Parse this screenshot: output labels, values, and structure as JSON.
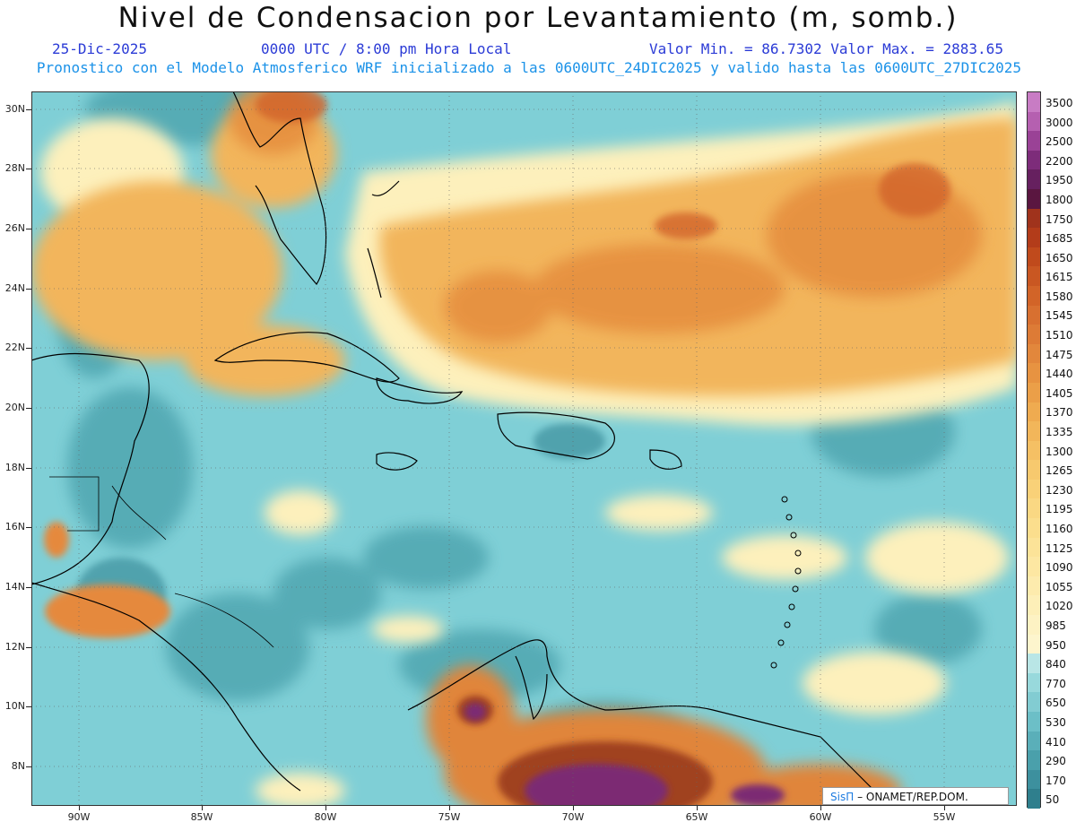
{
  "header": {
    "title": "Nivel de Condensacion por Levantamiento (m, somb.)",
    "date": "25-Dic-2025",
    "time": "0000 UTC / 8:00 pm Hora Local",
    "min_max": "Valor Min. = 86.7302  Valor Max. = 2883.65",
    "forecast_line": "Pronostico con el Modelo Atmosferico WRF inicializado a las 0600UTC_24DIC2025 y valido hasta las  0600UTC_27DIC2025"
  },
  "axes": {
    "lat_labels": [
      "30N",
      "28N",
      "26N",
      "24N",
      "22N",
      "20N",
      "18N",
      "16N",
      "14N",
      "12N",
      "10N",
      "8N"
    ],
    "lon_labels": [
      "90W",
      "85W",
      "80W",
      "75W",
      "70W",
      "65W",
      "60W",
      "55W"
    ]
  },
  "colorbar": {
    "labels": [
      "3500",
      "3000",
      "2500",
      "2200",
      "1950",
      "1800",
      "1750",
      "1685",
      "1650",
      "1615",
      "1580",
      "1545",
      "1510",
      "1475",
      "1440",
      "1405",
      "1370",
      "1335",
      "1300",
      "1265",
      "1230",
      "1195",
      "1160",
      "1125",
      "1090",
      "1055",
      "1020",
      "985",
      "950",
      "840",
      "770",
      "650",
      "530",
      "410",
      "290",
      "170",
      "50"
    ],
    "colors": [
      "#c87cc4",
      "#b560b0",
      "#9a4296",
      "#7d2c7a",
      "#66205f",
      "#5a1640",
      "#a0331c",
      "#b33c1a",
      "#c04a1c",
      "#c95722",
      "#d26428",
      "#d87030",
      "#dd7b36",
      "#e2873c",
      "#e79341",
      "#eb9f48",
      "#efab50",
      "#f2b65a",
      "#f5c064",
      "#f7c96e",
      "#f9d178",
      "#fad883",
      "#fbde8d",
      "#fce398",
      "#fde7a2",
      "#fdebad",
      "#fdefb8",
      "#fdf2c3",
      "#fdf5cd",
      "#b9e6e6",
      "#98d9dc",
      "#82ccd2",
      "#6cbfc7",
      "#5aafb9",
      "#4aa0ab",
      "#3d909e",
      "#2f7f8d"
    ]
  },
  "branding": {
    "logo": "SisΠ",
    "org": "– ONAMET/REP.DOM."
  }
}
